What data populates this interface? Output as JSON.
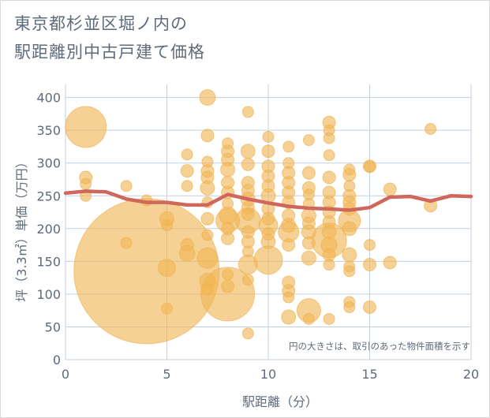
{
  "title_line1": "東京都杉並区堀ノ内の",
  "title_line2": "駅距離別中古戸建て価格",
  "chart_data": {
    "type": "scatter",
    "xlabel": "駅距離（分）",
    "ylabel": "坪（3.3㎡）単価（万円）",
    "note": "円の大きさは、取引のあった物件面積を示す",
    "xlim": [
      0,
      20
    ],
    "ylim": [
      0,
      420
    ],
    "x_ticks": [
      0,
      5,
      10,
      15,
      20
    ],
    "y_ticks": [
      0,
      50,
      100,
      150,
      200,
      250,
      300,
      350,
      400
    ],
    "grid": true,
    "colors": {
      "bubble": "#f0b454",
      "line": "#d0675c",
      "grid": "#c4d0df",
      "text": "#5f6b7a"
    },
    "bubbles": [
      {
        "x": 1,
        "y": 355,
        "r": 26
      },
      {
        "x": 1,
        "y": 278,
        "r": 8
      },
      {
        "x": 1,
        "y": 268,
        "r": 7
      },
      {
        "x": 1,
        "y": 250,
        "r": 7
      },
      {
        "x": 3,
        "y": 265,
        "r": 7
      },
      {
        "x": 3,
        "y": 178,
        "r": 7
      },
      {
        "x": 4,
        "y": 243,
        "r": 7
      },
      {
        "x": 4,
        "y": 135,
        "r": 92
      },
      {
        "x": 5,
        "y": 215,
        "r": 9
      },
      {
        "x": 5,
        "y": 205,
        "r": 7
      },
      {
        "x": 5,
        "y": 140,
        "r": 11
      },
      {
        "x": 5,
        "y": 78,
        "r": 7
      },
      {
        "x": 6,
        "y": 313,
        "r": 7
      },
      {
        "x": 6,
        "y": 288,
        "r": 8
      },
      {
        "x": 6,
        "y": 265,
        "r": 7
      },
      {
        "x": 6,
        "y": 175,
        "r": 8
      },
      {
        "x": 6,
        "y": 162,
        "r": 10
      },
      {
        "x": 7,
        "y": 400,
        "r": 10
      },
      {
        "x": 7,
        "y": 342,
        "r": 8
      },
      {
        "x": 7,
        "y": 302,
        "r": 7
      },
      {
        "x": 7,
        "y": 288,
        "r": 8
      },
      {
        "x": 7,
        "y": 278,
        "r": 8
      },
      {
        "x": 7,
        "y": 262,
        "r": 9
      },
      {
        "x": 7,
        "y": 240,
        "r": 7
      },
      {
        "x": 7,
        "y": 215,
        "r": 8
      },
      {
        "x": 7,
        "y": 190,
        "r": 7
      },
      {
        "x": 7,
        "y": 155,
        "r": 13
      },
      {
        "x": 7,
        "y": 120,
        "r": 10
      },
      {
        "x": 7,
        "y": 108,
        "r": 8
      },
      {
        "x": 8,
        "y": 330,
        "r": 7
      },
      {
        "x": 8,
        "y": 318,
        "r": 8
      },
      {
        "x": 8,
        "y": 305,
        "r": 8
      },
      {
        "x": 8,
        "y": 290,
        "r": 9
      },
      {
        "x": 8,
        "y": 270,
        "r": 8
      },
      {
        "x": 8,
        "y": 255,
        "r": 8
      },
      {
        "x": 8,
        "y": 238,
        "r": 7
      },
      {
        "x": 8,
        "y": 220,
        "r": 11
      },
      {
        "x": 8,
        "y": 212,
        "r": 15
      },
      {
        "x": 8,
        "y": 200,
        "r": 8
      },
      {
        "x": 8,
        "y": 185,
        "r": 8
      },
      {
        "x": 8,
        "y": 130,
        "r": 7
      },
      {
        "x": 8,
        "y": 112,
        "r": 8
      },
      {
        "x": 8,
        "y": 100,
        "r": 34
      },
      {
        "x": 9,
        "y": 378,
        "r": 7
      },
      {
        "x": 9,
        "y": 318,
        "r": 9
      },
      {
        "x": 9,
        "y": 298,
        "r": 8
      },
      {
        "x": 9,
        "y": 270,
        "r": 8
      },
      {
        "x": 9,
        "y": 258,
        "r": 8
      },
      {
        "x": 9,
        "y": 245,
        "r": 9
      },
      {
        "x": 9,
        "y": 232,
        "r": 8
      },
      {
        "x": 9,
        "y": 222,
        "r": 8
      },
      {
        "x": 9,
        "y": 212,
        "r": 16
      },
      {
        "x": 9,
        "y": 195,
        "r": 8
      },
      {
        "x": 9,
        "y": 180,
        "r": 8
      },
      {
        "x": 9,
        "y": 165,
        "r": 7
      },
      {
        "x": 9,
        "y": 145,
        "r": 12
      },
      {
        "x": 9,
        "y": 122,
        "r": 7
      },
      {
        "x": 9,
        "y": 40,
        "r": 7
      },
      {
        "x": 10,
        "y": 340,
        "r": 7
      },
      {
        "x": 10,
        "y": 318,
        "r": 8
      },
      {
        "x": 10,
        "y": 295,
        "r": 8
      },
      {
        "x": 10,
        "y": 280,
        "r": 8
      },
      {
        "x": 10,
        "y": 265,
        "r": 8
      },
      {
        "x": 10,
        "y": 250,
        "r": 9
      },
      {
        "x": 10,
        "y": 230,
        "r": 8
      },
      {
        "x": 10,
        "y": 215,
        "r": 8
      },
      {
        "x": 10,
        "y": 205,
        "r": 12
      },
      {
        "x": 10,
        "y": 192,
        "r": 8
      },
      {
        "x": 10,
        "y": 180,
        "r": 9
      },
      {
        "x": 10,
        "y": 152,
        "r": 18
      },
      {
        "x": 11,
        "y": 325,
        "r": 7
      },
      {
        "x": 11,
        "y": 300,
        "r": 7
      },
      {
        "x": 11,
        "y": 285,
        "r": 8
      },
      {
        "x": 11,
        "y": 270,
        "r": 8
      },
      {
        "x": 11,
        "y": 255,
        "r": 8
      },
      {
        "x": 11,
        "y": 240,
        "r": 8
      },
      {
        "x": 11,
        "y": 220,
        "r": 8
      },
      {
        "x": 11,
        "y": 205,
        "r": 9
      },
      {
        "x": 11,
        "y": 195,
        "r": 13
      },
      {
        "x": 11,
        "y": 175,
        "r": 8
      },
      {
        "x": 11,
        "y": 118,
        "r": 8
      },
      {
        "x": 11,
        "y": 105,
        "r": 8
      },
      {
        "x": 11,
        "y": 95,
        "r": 7
      },
      {
        "x": 11,
        "y": 65,
        "r": 9
      },
      {
        "x": 12,
        "y": 335,
        "r": 7
      },
      {
        "x": 12,
        "y": 285,
        "r": 8
      },
      {
        "x": 12,
        "y": 262,
        "r": 8
      },
      {
        "x": 12,
        "y": 252,
        "r": 7
      },
      {
        "x": 12,
        "y": 238,
        "r": 7
      },
      {
        "x": 12,
        "y": 220,
        "r": 9
      },
      {
        "x": 12,
        "y": 208,
        "r": 8
      },
      {
        "x": 12,
        "y": 195,
        "r": 9
      },
      {
        "x": 12,
        "y": 178,
        "r": 8
      },
      {
        "x": 12,
        "y": 155,
        "r": 9
      },
      {
        "x": 12,
        "y": 75,
        "r": 15
      },
      {
        "x": 12,
        "y": 62,
        "r": 7
      },
      {
        "x": 13,
        "y": 362,
        "r": 8
      },
      {
        "x": 13,
        "y": 350,
        "r": 7
      },
      {
        "x": 13,
        "y": 338,
        "r": 7
      },
      {
        "x": 13,
        "y": 312,
        "r": 7
      },
      {
        "x": 13,
        "y": 278,
        "r": 8
      },
      {
        "x": 13,
        "y": 255,
        "r": 8
      },
      {
        "x": 13,
        "y": 240,
        "r": 8
      },
      {
        "x": 13,
        "y": 225,
        "r": 8
      },
      {
        "x": 13,
        "y": 210,
        "r": 8
      },
      {
        "x": 13,
        "y": 195,
        "r": 9
      },
      {
        "x": 13,
        "y": 182,
        "r": 22
      },
      {
        "x": 13,
        "y": 175,
        "r": 10
      },
      {
        "x": 13,
        "y": 160,
        "r": 8
      },
      {
        "x": 13,
        "y": 145,
        "r": 7
      },
      {
        "x": 13,
        "y": 62,
        "r": 7
      },
      {
        "x": 14,
        "y": 290,
        "r": 7
      },
      {
        "x": 14,
        "y": 282,
        "r": 8
      },
      {
        "x": 14,
        "y": 265,
        "r": 7
      },
      {
        "x": 14,
        "y": 250,
        "r": 8
      },
      {
        "x": 14,
        "y": 240,
        "r": 8
      },
      {
        "x": 14,
        "y": 230,
        "r": 8
      },
      {
        "x": 14,
        "y": 212,
        "r": 14
      },
      {
        "x": 14,
        "y": 200,
        "r": 9
      },
      {
        "x": 14,
        "y": 160,
        "r": 9
      },
      {
        "x": 14,
        "y": 142,
        "r": 7
      },
      {
        "x": 14,
        "y": 135,
        "r": 7
      },
      {
        "x": 14,
        "y": 88,
        "r": 7
      },
      {
        "x": 14,
        "y": 80,
        "r": 7
      },
      {
        "x": 15,
        "y": 295,
        "r": 7
      },
      {
        "x": 15,
        "y": 295,
        "r": 8
      },
      {
        "x": 15,
        "y": 175,
        "r": 7
      },
      {
        "x": 15,
        "y": 145,
        "r": 8
      },
      {
        "x": 15,
        "y": 80,
        "r": 8
      },
      {
        "x": 16,
        "y": 260,
        "r": 8
      },
      {
        "x": 16,
        "y": 148,
        "r": 8
      },
      {
        "x": 18,
        "y": 352,
        "r": 7
      },
      {
        "x": 18,
        "y": 235,
        "r": 8
      }
    ],
    "trend_line": {
      "x": [
        0,
        1,
        2,
        3,
        4,
        5,
        6,
        7,
        8,
        9,
        10,
        11,
        12,
        13,
        14,
        15,
        16,
        17,
        18,
        19,
        20
      ],
      "y": [
        254,
        257,
        256,
        245,
        240,
        240,
        236,
        236,
        252,
        245,
        239,
        234,
        231,
        230,
        228,
        232,
        248,
        249,
        242,
        250,
        249
      ]
    }
  }
}
